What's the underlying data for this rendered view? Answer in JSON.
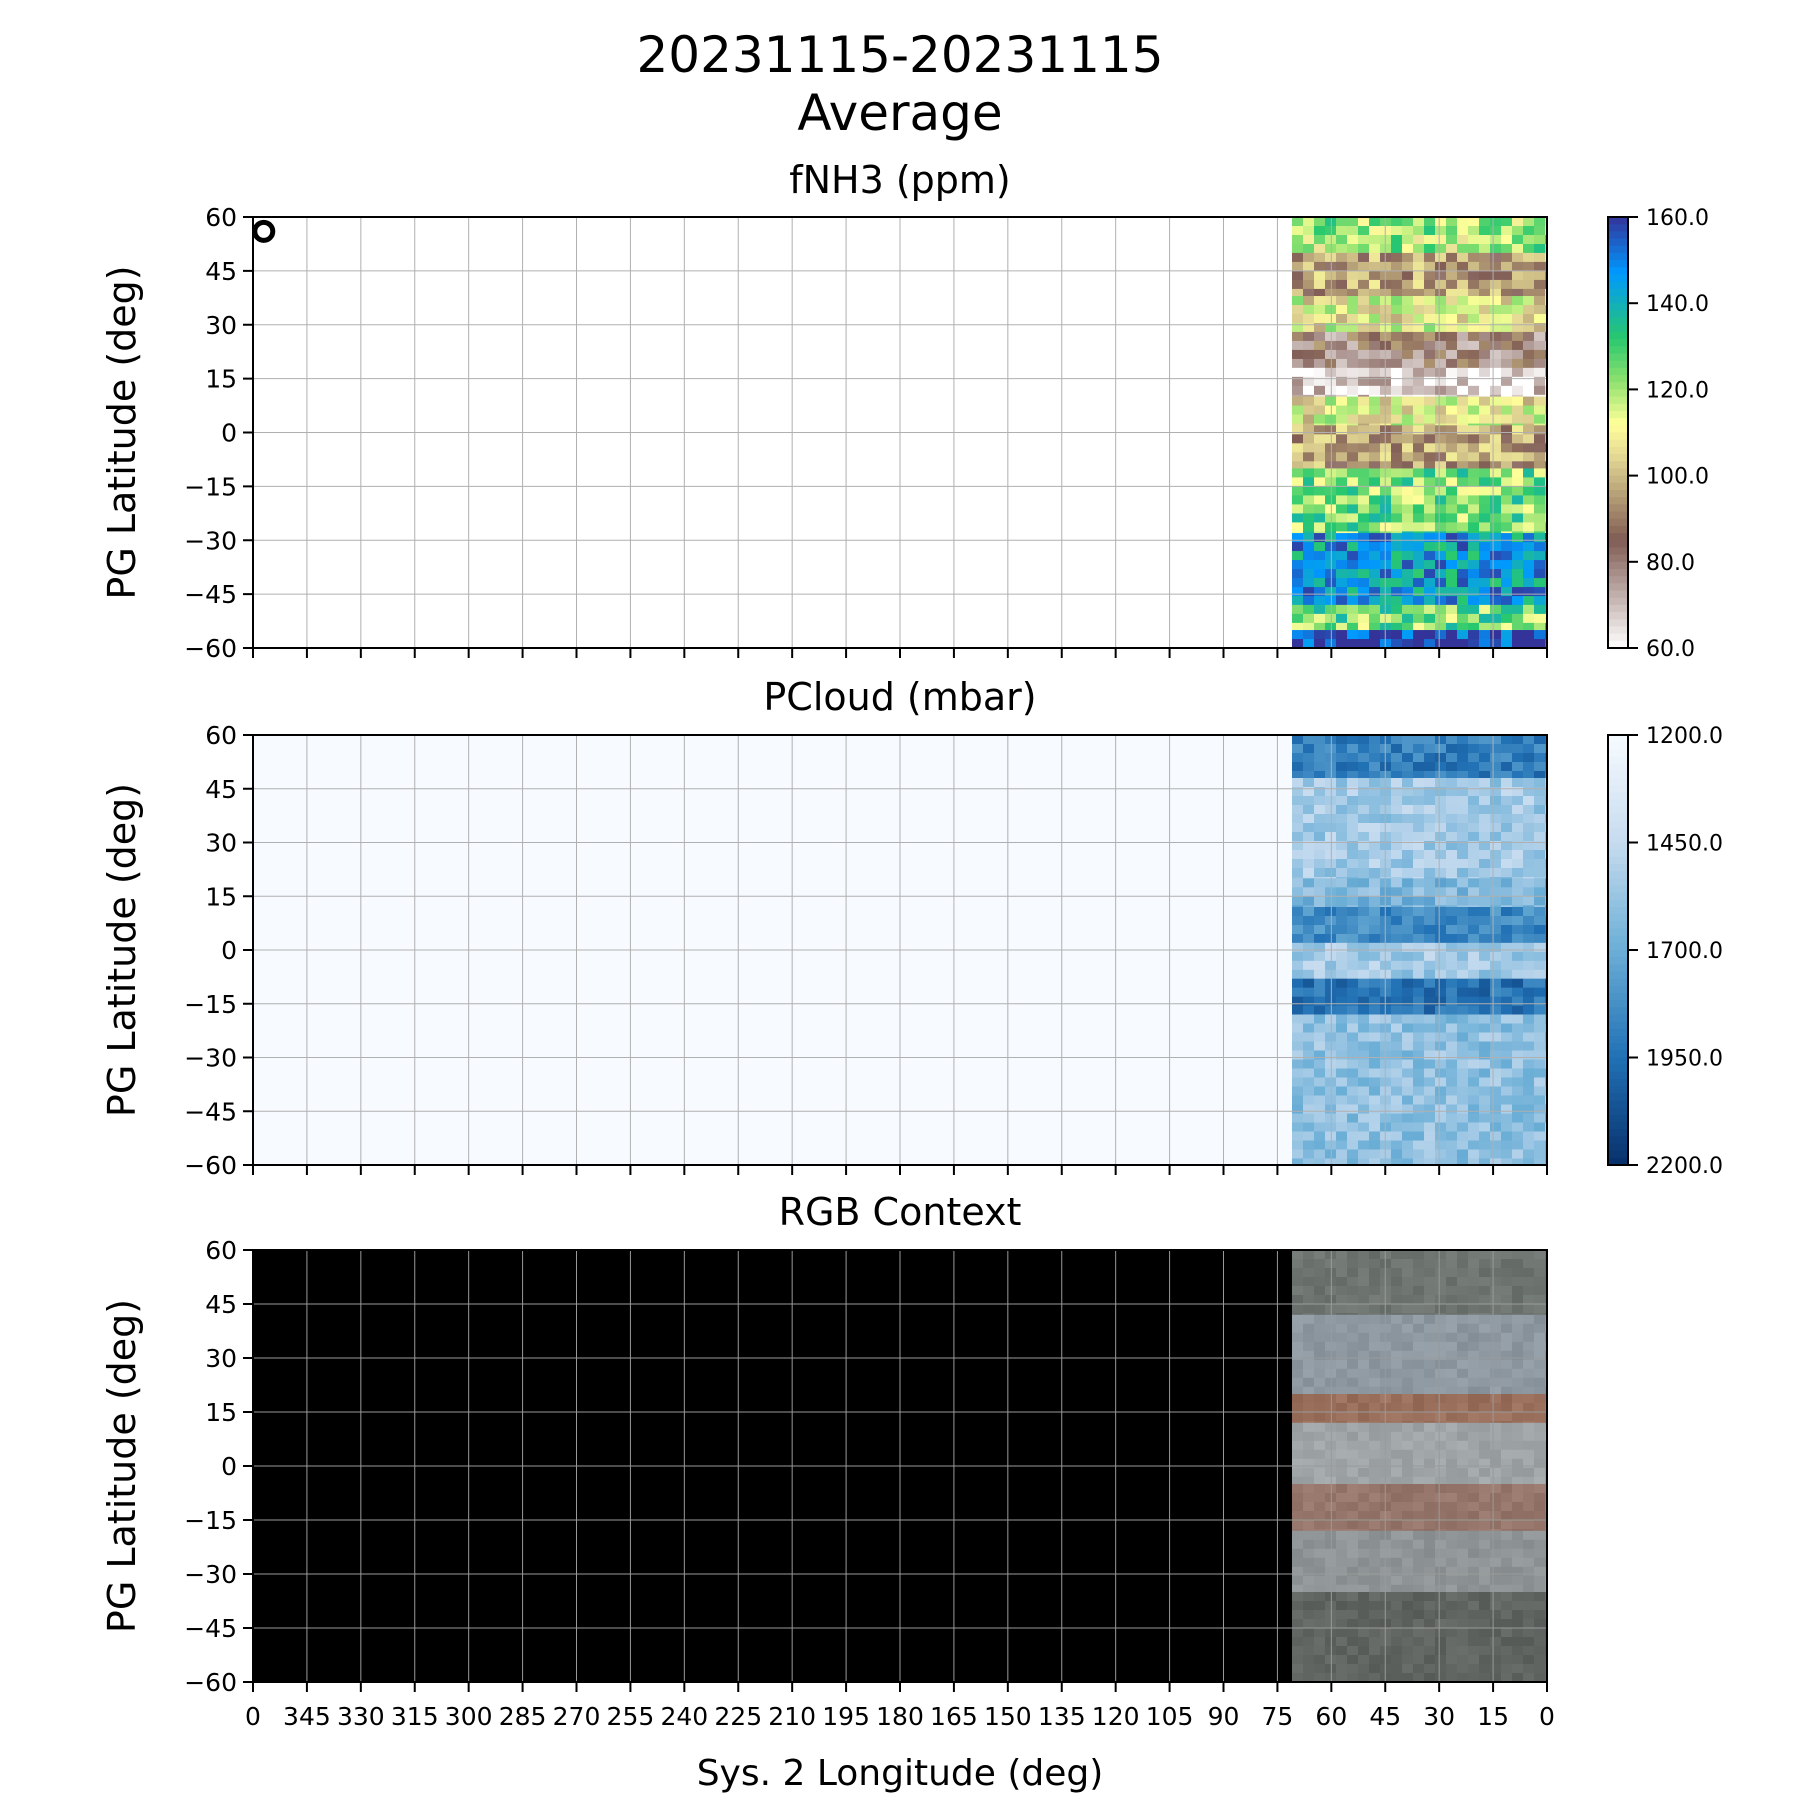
{
  "figure": {
    "title_line1": "20231115-20231115",
    "title_line2": "Average",
    "xlabel": "Sys. 2 Longitude (deg)"
  },
  "panels": [
    {
      "title": "fNH3 (ppm)",
      "ylabel": "PG Latitude (deg)",
      "colorbar": {
        "ticks": [
          "160.0",
          "140.0",
          "120.0",
          "100.0",
          "80.0",
          "60.0"
        ],
        "range": [
          60,
          160
        ],
        "colormap": "terrain_r"
      },
      "marker": {
        "shape": "open-circle",
        "longitude": 357,
        "latitude": 56
      },
      "background": "#ffffff"
    },
    {
      "title": "PCloud (mbar)",
      "ylabel": "PG Latitude (deg)",
      "colorbar": {
        "ticks": [
          "1200.0",
          "1450.0",
          "1700.0",
          "1950.0",
          "2200.0"
        ],
        "range": [
          1200,
          2200
        ],
        "colormap": "Blues"
      },
      "background": "#f7fbff"
    },
    {
      "title": "RGB Context",
      "ylabel": "PG Latitude (deg)",
      "background": "#000000"
    }
  ],
  "chart_data": {
    "type": "heatmap",
    "xlim": [
      360,
      0
    ],
    "ylim": [
      -60,
      60
    ],
    "data_longitude_range": [
      0,
      72
    ],
    "x_ticks": [
      "0",
      "345",
      "330",
      "315",
      "300",
      "285",
      "270",
      "255",
      "240",
      "225",
      "210",
      "195",
      "180",
      "165",
      "150",
      "135",
      "120",
      "105",
      "90",
      "75",
      "60",
      "45",
      "30",
      "15",
      "0"
    ],
    "y_ticks": [
      "60",
      "45",
      "30",
      "15",
      "0",
      "−15",
      "−30",
      "−45",
      "−60"
    ],
    "grid": true,
    "bands_fnh3": [
      {
        "lat": [
          60,
          50
        ],
        "value": 120
      },
      {
        "lat": [
          50,
          38
        ],
        "value": 95
      },
      {
        "lat": [
          38,
          28
        ],
        "value": 110
      },
      {
        "lat": [
          28,
          18
        ],
        "value": 82
      },
      {
        "lat": [
          18,
          10
        ],
        "value": 65
      },
      {
        "lat": [
          10,
          2
        ],
        "value": 110
      },
      {
        "lat": [
          2,
          -10
        ],
        "value": 95
      },
      {
        "lat": [
          -10,
          -28
        ],
        "value": 125
      },
      {
        "lat": [
          -28,
          -48
        ],
        "value": 145
      },
      {
        "lat": [
          -48,
          -55
        ],
        "value": 125
      },
      {
        "lat": [
          -55,
          -60
        ],
        "value": 158
      }
    ],
    "bands_pcloud": [
      {
        "lat": [
          60,
          48
        ],
        "value": 1900
      },
      {
        "lat": [
          48,
          20
        ],
        "value": 1550
      },
      {
        "lat": [
          20,
          12
        ],
        "value": 1650
      },
      {
        "lat": [
          12,
          2
        ],
        "value": 1850
      },
      {
        "lat": [
          2,
          -8
        ],
        "value": 1550
      },
      {
        "lat": [
          -8,
          -18
        ],
        "value": 1950
      },
      {
        "lat": [
          -18,
          -60
        ],
        "value": 1600
      }
    ],
    "bands_rgb": [
      {
        "lat": [
          60,
          42
        ],
        "color": "#6d7470"
      },
      {
        "lat": [
          42,
          20
        ],
        "color": "#8d98a0"
      },
      {
        "lat": [
          20,
          12
        ],
        "color": "#9a6f5c"
      },
      {
        "lat": [
          12,
          -5
        ],
        "color": "#9fa5a6"
      },
      {
        "lat": [
          -5,
          -18
        ],
        "color": "#96766a"
      },
      {
        "lat": [
          -18,
          -35
        ],
        "color": "#8f9596"
      },
      {
        "lat": [
          -35,
          -60
        ],
        "color": "#5f6460"
      }
    ]
  }
}
